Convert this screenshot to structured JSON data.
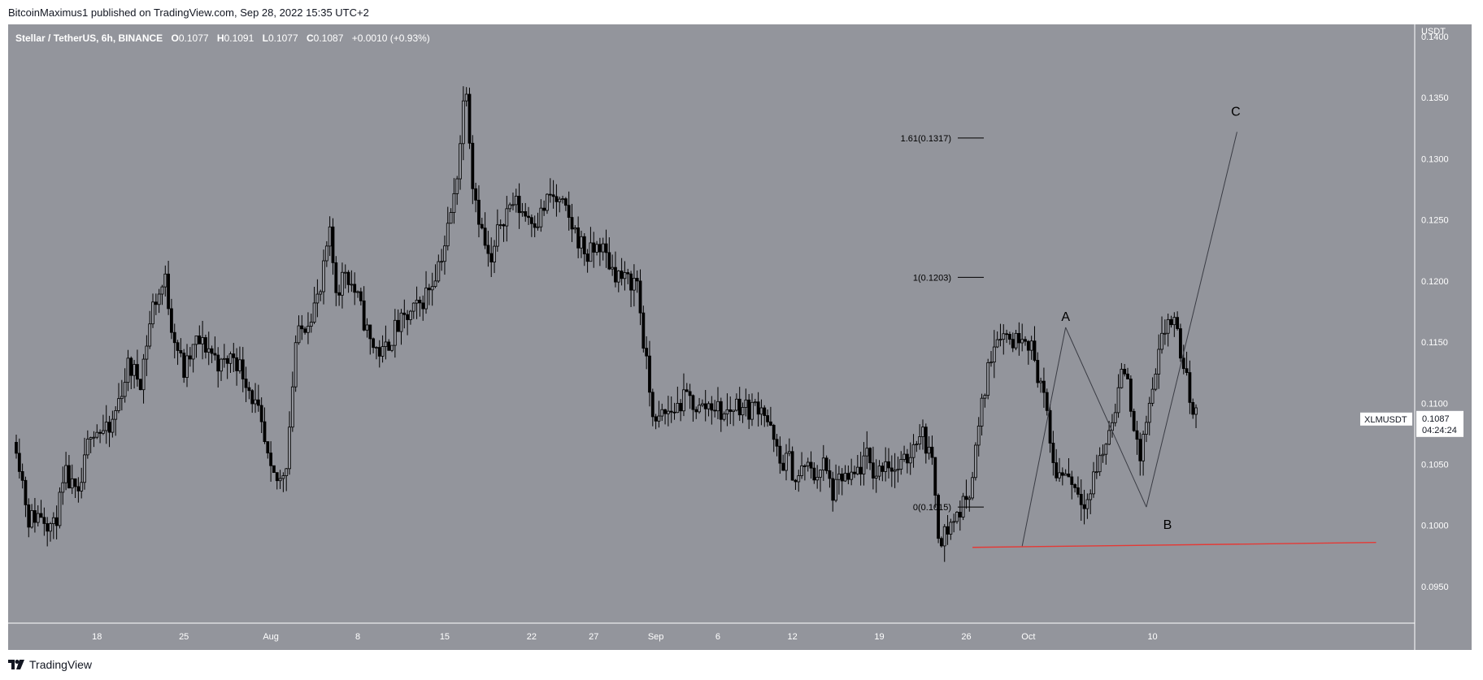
{
  "header": {
    "publisher": "BitcoinMaximus1",
    "text": "BitcoinMaximus1 published on TradingView.com, Sep 28, 2022 15:35 UTC+2"
  },
  "legend": {
    "symbol_line": "Stellar / TetherUS, 6h, BINANCE",
    "o_label": "O",
    "o_value": "0.1077",
    "h_label": "H",
    "h_value": "0.1091",
    "l_label": "L",
    "l_value": "0.1077",
    "c_label": "C",
    "c_value": "0.1087",
    "change": "+0.0010 (+0.93%)"
  },
  "price_tag": {
    "symbol": "XLMUSDT",
    "price": "0.1087",
    "countdown": "04:24:24"
  },
  "footer": {
    "brand": "TradingView"
  },
  "colors": {
    "plot_bg": "#93959c",
    "axis_bg": "#93959c",
    "candle": "#000000",
    "support_line": "#e53935",
    "text": "#ffffff",
    "annotation_text": "#000000"
  },
  "chart_data": {
    "type": "candlestick",
    "title": "Stellar / TetherUS, 6h, BINANCE",
    "y_axis_unit": "USDT",
    "ylim": [
      0.092,
      0.141
    ],
    "y_ticks": [
      "0.1400",
      "0.1350",
      "0.1300",
      "0.1250",
      "0.1200",
      "0.1150",
      "0.1100",
      "0.1050",
      "0.1000",
      "0.0950"
    ],
    "x_ticks": [
      "18",
      "25",
      "Aug",
      "8",
      "15",
      "22",
      "27",
      "Sep",
      "6",
      "12",
      "19",
      "26",
      "Oct",
      "10"
    ],
    "x_tick_days": [
      -13,
      -6,
      1,
      8,
      15,
      22,
      27,
      32,
      37,
      43,
      50,
      57,
      62,
      72
    ],
    "x_start_day": -19.5,
    "x_end_day": 75.5,
    "bar_hours": 6,
    "price_path": [
      [
        -19.5,
        0.1068
      ],
      [
        -18.5,
        0.1005
      ],
      [
        -17.5,
        0.101
      ],
      [
        -16.5,
        0.0998
      ],
      [
        -15.5,
        0.104
      ],
      [
        -14.5,
        0.102
      ],
      [
        -13.5,
        0.108
      ],
      [
        -12,
        0.1075
      ],
      [
        -10.5,
        0.113
      ],
      [
        -9.5,
        0.112
      ],
      [
        -8.5,
        0.118
      ],
      [
        -7.5,
        0.12
      ],
      [
        -7,
        0.1165
      ],
      [
        -6,
        0.1125
      ],
      [
        -5,
        0.115
      ],
      [
        -4,
        0.1145
      ],
      [
        -3,
        0.113
      ],
      [
        -2,
        0.114
      ],
      [
        -1,
        0.112
      ],
      [
        0,
        0.109
      ],
      [
        1,
        0.104
      ],
      [
        1.7,
        0.1035
      ],
      [
        2.3,
        0.1055
      ],
      [
        3,
        0.115
      ],
      [
        4,
        0.117
      ],
      [
        5,
        0.119
      ],
      [
        5.7,
        0.124
      ],
      [
        6.3,
        0.119
      ],
      [
        7,
        0.121
      ],
      [
        8,
        0.1185
      ],
      [
        9,
        0.115
      ],
      [
        10,
        0.114
      ],
      [
        11,
        0.116
      ],
      [
        12,
        0.117
      ],
      [
        13,
        0.118
      ],
      [
        14,
        0.12
      ],
      [
        15,
        0.123
      ],
      [
        15.8,
        0.127
      ],
      [
        16.3,
        0.132
      ],
      [
        16.7,
        0.137
      ],
      [
        17.2,
        0.1285
      ],
      [
        18,
        0.124
      ],
      [
        18.7,
        0.121
      ],
      [
        19.5,
        0.125
      ],
      [
        20.5,
        0.1265
      ],
      [
        21.5,
        0.1255
      ],
      [
        22.5,
        0.125
      ],
      [
        23.5,
        0.127
      ],
      [
        24.5,
        0.126
      ],
      [
        25.5,
        0.124
      ],
      [
        26.5,
        0.122
      ],
      [
        27.5,
        0.123
      ],
      [
        28.5,
        0.121
      ],
      [
        29.5,
        0.12
      ],
      [
        30.5,
        0.12
      ],
      [
        31,
        0.115
      ],
      [
        31.5,
        0.111
      ],
      [
        32,
        0.108
      ],
      [
        32.5,
        0.109
      ],
      [
        33.5,
        0.1095
      ],
      [
        34.5,
        0.1105
      ],
      [
        35.5,
        0.1095
      ],
      [
        36.5,
        0.11
      ],
      [
        37.5,
        0.109
      ],
      [
        38.5,
        0.11
      ],
      [
        39.5,
        0.1095
      ],
      [
        40.5,
        0.11
      ],
      [
        41,
        0.1085
      ],
      [
        42,
        0.105
      ],
      [
        42.7,
        0.1055
      ],
      [
        43.3,
        0.1035
      ],
      [
        44,
        0.105
      ],
      [
        44.7,
        0.104
      ],
      [
        45.5,
        0.105
      ],
      [
        46.3,
        0.1025
      ],
      [
        47,
        0.104
      ],
      [
        47.7,
        0.1035
      ],
      [
        48.3,
        0.1045
      ],
      [
        49,
        0.1055
      ],
      [
        49.7,
        0.104
      ],
      [
        50.5,
        0.1055
      ],
      [
        51.2,
        0.1045
      ],
      [
        52,
        0.105
      ],
      [
        52.7,
        0.1065
      ],
      [
        53.3,
        0.108
      ],
      [
        54,
        0.106
      ],
      [
        54.4,
        0.104
      ],
      [
        54.8,
        0.099
      ],
      [
        55.4,
        0.0995
      ],
      [
        56,
        0.1005
      ],
      [
        56.7,
        0.1015
      ],
      [
        57.4,
        0.1035
      ],
      [
        58,
        0.108
      ],
      [
        58.6,
        0.112
      ],
      [
        59.2,
        0.115
      ],
      [
        59.7,
        0.116
      ],
      [
        60.3,
        0.1155
      ],
      [
        60.9,
        0.115
      ],
      [
        61.5,
        0.116
      ],
      [
        62.1,
        0.115
      ],
      [
        62.6,
        0.113
      ],
      [
        63.2,
        0.111
      ],
      [
        63.8,
        0.106
      ],
      [
        64.4,
        0.104
      ],
      [
        65,
        0.1045
      ],
      [
        65.6,
        0.1035
      ],
      [
        66.2,
        0.1025
      ],
      [
        66.8,
        0.102
      ],
      [
        67.4,
        0.1045
      ],
      [
        68,
        0.106
      ],
      [
        68.6,
        0.108
      ],
      [
        69.2,
        0.111
      ],
      [
        69.8,
        0.113
      ],
      [
        70.4,
        0.109
      ],
      [
        70.9,
        0.105
      ],
      [
        71.5,
        0.1085
      ],
      [
        72.1,
        0.111
      ],
      [
        72.7,
        0.115
      ],
      [
        73.3,
        0.117
      ],
      [
        73.9,
        0.116
      ],
      [
        74.5,
        0.113
      ],
      [
        75.1,
        0.11
      ],
      [
        75.5,
        0.109
      ]
    ],
    "fib_levels": [
      {
        "label": "1.61(0.1317)",
        "value": 0.1317
      },
      {
        "label": "1(0.1203)",
        "value": 0.1203
      },
      {
        "label": "0(0.1015)",
        "value": 0.1015
      }
    ],
    "wave_labels": [
      {
        "label": "A",
        "day": 65.0,
        "value": 0.1162
      },
      {
        "label": "B",
        "day": 73.2,
        "value": 0.1013
      },
      {
        "label": "C",
        "day": 78.7,
        "value": 0.133
      }
    ],
    "wave_lines": [
      [
        [
          61.5,
          0.0983
        ],
        [
          65.0,
          0.1162
        ]
      ],
      [
        [
          65.0,
          0.1162
        ],
        [
          71.5,
          0.1015
        ]
      ],
      [
        [
          71.5,
          0.1015
        ],
        [
          78.8,
          0.1322
        ]
      ]
    ],
    "support_line": {
      "start": [
        57.5,
        0.0982
      ],
      "end": [
        90.0,
        0.0986
      ]
    },
    "last_price": 0.1087,
    "legend_position": "top-left"
  }
}
